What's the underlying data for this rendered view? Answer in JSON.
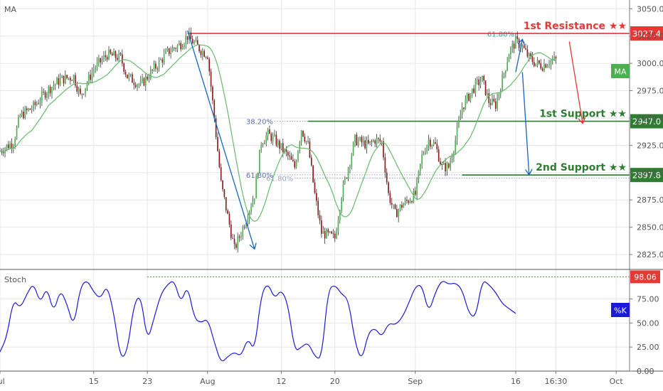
{
  "window": {
    "indicator_label": "MA",
    "stoch_label": "Stoch",
    "ma_badge": "MA",
    "k_badge": "%K"
  },
  "colors": {
    "up": "#4caf50",
    "down": "#8b1a1a",
    "wick": "#333333",
    "ma": "#66bb6a",
    "resistance": "#e53935",
    "support": "#2e7d32",
    "arrow": "#1565c0",
    "stoch": "#1a1ad8",
    "fib": "#5a6fb3",
    "fib_top": "#26a69a",
    "grid": "#e6e6e6"
  },
  "chart_data": [
    {
      "type": "candlestick",
      "title": "",
      "y_axis": {
        "min": 2812,
        "max": 3058,
        "ticks": [
          "3050.0",
          "3025.0",
          "3000.0",
          "2975.0",
          "2950.0",
          "2925.0",
          "2900.0",
          "2875.0",
          "2850.0",
          "2825.0"
        ]
      },
      "x_axis": {
        "day_range": [
          0,
          94
        ],
        "ticks": [
          {
            "label": "Jul",
            "day": 0
          },
          {
            "label": "15",
            "day": 14
          },
          {
            "label": "23",
            "day": 22
          },
          {
            "label": "Aug",
            "day": 31
          },
          {
            "label": "12",
            "day": 42
          },
          {
            "label": "20",
            "day": 50
          },
          {
            "label": "Sep",
            "day": 62
          },
          {
            "label": "16",
            "day": 77
          },
          {
            "label": "16:30",
            "day": 83
          },
          {
            "label": "Oct",
            "day": 92
          }
        ]
      },
      "price_path": [
        [
          0,
          2920
        ],
        [
          2,
          2928
        ],
        [
          3,
          2952
        ],
        [
          5,
          2960
        ],
        [
          7,
          2975
        ],
        [
          9,
          2985
        ],
        [
          11,
          2988
        ],
        [
          12,
          2970
        ],
        [
          14,
          2995
        ],
        [
          16,
          3008
        ],
        [
          18,
          3005
        ],
        [
          19,
          2988
        ],
        [
          21,
          2980
        ],
        [
          23,
          2995
        ],
        [
          25,
          3010
        ],
        [
          27,
          3018
        ],
        [
          28,
          3025
        ],
        [
          30,
          3012
        ],
        [
          31,
          3008
        ],
        [
          32,
          2950
        ],
        [
          33,
          2890
        ],
        [
          35,
          2830
        ],
        [
          36,
          2845
        ],
        [
          38,
          2880
        ],
        [
          39,
          2928
        ],
        [
          40,
          2935
        ],
        [
          41,
          2930
        ],
        [
          43,
          2915
        ],
        [
          44,
          2905
        ],
        [
          45,
          2940
        ],
        [
          46,
          2925
        ],
        [
          47,
          2880
        ],
        [
          48,
          2845
        ],
        [
          50,
          2840
        ],
        [
          51,
          2880
        ],
        [
          53,
          2930
        ],
        [
          55,
          2925
        ],
        [
          56,
          2930
        ],
        [
          57,
          2928
        ],
        [
          58,
          2880
        ],
        [
          59,
          2862
        ],
        [
          60,
          2870
        ],
        [
          62,
          2880
        ],
        [
          63,
          2915
        ],
        [
          64,
          2930
        ],
        [
          65,
          2925
        ],
        [
          66,
          2905
        ],
        [
          67,
          2905
        ],
        [
          68,
          2930
        ],
        [
          69,
          2960
        ],
        [
          71,
          2980
        ],
        [
          72,
          2985
        ],
        [
          73,
          2965
        ],
        [
          74,
          2962
        ],
        [
          75,
          2985
        ],
        [
          76,
          3010
        ],
        [
          77,
          3020
        ],
        [
          78,
          3015
        ],
        [
          79,
          3005
        ],
        [
          80,
          3000
        ],
        [
          81,
          2998
        ],
        [
          82,
          3002
        ],
        [
          83,
          3003
        ]
      ],
      "levels": [
        {
          "name": "1st Resistance ★★",
          "value": 3027.4,
          "label": "3027.4",
          "color": "#e53935",
          "start_day": 28
        },
        {
          "name": "1st Support ★★",
          "value": 2947.0,
          "label": "2947.0",
          "color": "#2e7d32",
          "start_day": 46
        },
        {
          "name": "2nd Support ★★",
          "value": 2897.8,
          "label": "2897.8",
          "color": "#2e7d32",
          "start_day": 69
        }
      ],
      "fib_lines": [
        {
          "label": "38.20%",
          "value": 2947,
          "from_day": 41,
          "to_day": 98
        },
        {
          "label": "61.80%",
          "value": 2898,
          "from_day": 41,
          "to_day": 98
        },
        {
          "label": "61.80%",
          "value": 2895,
          "from_day": 44,
          "to_day": 98
        },
        {
          "label": "61.80%",
          "value": 3027,
          "from_day": 77,
          "to_day": 98
        }
      ],
      "arrows": [
        {
          "from": [
            28,
            3030
          ],
          "to": [
            38,
            2830
          ]
        },
        {
          "from": [
            77,
            2992
          ],
          "to": [
            78,
            3022
          ]
        },
        {
          "from": [
            78,
            2992
          ],
          "to": [
            79,
            2898
          ]
        },
        {
          "from": [
            85,
            3020
          ],
          "to": [
            87,
            2945
          ]
        }
      ]
    },
    {
      "type": "line",
      "title": "",
      "y_axis": {
        "min": 0,
        "max": 105,
        "ticks": [
          "98.06",
          "75.00",
          "50.00",
          "25.00",
          "0.00"
        ]
      },
      "reference": {
        "value": 98.06,
        "label": "98.06"
      },
      "series": [
        {
          "values": [
            [
              0,
              20
            ],
            [
              1,
              35
            ],
            [
              2,
              75
            ],
            [
              3,
              65
            ],
            [
              4,
              80
            ],
            [
              5,
              92
            ],
            [
              6,
              70
            ],
            [
              7,
              88
            ],
            [
              8,
              60
            ],
            [
              9,
              85
            ],
            [
              10,
              70
            ],
            [
              11,
              45
            ],
            [
              12,
              88
            ],
            [
              13,
              95
            ],
            [
              14,
              82
            ],
            [
              15,
              75
            ],
            [
              16,
              90
            ],
            [
              17,
              60
            ],
            [
              18,
              12
            ],
            [
              19,
              20
            ],
            [
              20,
              70
            ],
            [
              21,
              80
            ],
            [
              22,
              30
            ],
            [
              23,
              55
            ],
            [
              24,
              80
            ],
            [
              25,
              90
            ],
            [
              26,
              95
            ],
            [
              27,
              70
            ],
            [
              28,
              90
            ],
            [
              29,
              55
            ],
            [
              30,
              50
            ],
            [
              31,
              55
            ],
            [
              32,
              30
            ],
            [
              33,
              8
            ],
            [
              34,
              15
            ],
            [
              35,
              20
            ],
            [
              36,
              15
            ],
            [
              37,
              35
            ],
            [
              38,
              20
            ],
            [
              39,
              80
            ],
            [
              40,
              92
            ],
            [
              41,
              75
            ],
            [
              42,
              85
            ],
            [
              43,
              70
            ],
            [
              44,
              20
            ],
            [
              45,
              25
            ],
            [
              46,
              30
            ],
            [
              47,
              15
            ],
            [
              48,
              12
            ],
            [
              49,
              85
            ],
            [
              50,
              90
            ],
            [
              51,
              80
            ],
            [
              52,
              75
            ],
            [
              53,
              30
            ],
            [
              54,
              10
            ],
            [
              55,
              40
            ],
            [
              56,
              45
            ],
            [
              57,
              35
            ],
            [
              58,
              50
            ],
            [
              59,
              48
            ],
            [
              60,
              55
            ],
            [
              61,
              70
            ],
            [
              62,
              88
            ],
            [
              63,
              90
            ],
            [
              64,
              60
            ],
            [
              65,
              82
            ],
            [
              66,
              95
            ],
            [
              67,
              90
            ],
            [
              68,
              92
            ],
            [
              69,
              85
            ],
            [
              70,
              60
            ],
            [
              71,
              55
            ],
            [
              72,
              95
            ],
            [
              73,
              90
            ],
            [
              74,
              82
            ],
            [
              75,
              70
            ],
            [
              76,
              65
            ],
            [
              77,
              60
            ]
          ]
        }
      ]
    }
  ]
}
